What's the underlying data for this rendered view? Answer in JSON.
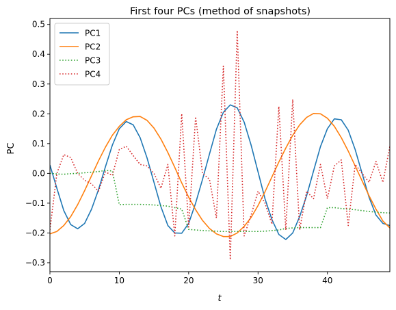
{
  "chart_data": {
    "type": "line",
    "title": "First four PCs (method of snapshots)",
    "xlabel": "t",
    "ylabel": "PC",
    "xlim": [
      0,
      49
    ],
    "ylim": [
      -0.33,
      0.52
    ],
    "xticks": [
      0,
      10,
      20,
      30,
      40
    ],
    "yticks": [
      -0.3,
      -0.2,
      -0.1,
      0.0,
      0.1,
      0.2,
      0.3,
      0.4,
      0.5
    ],
    "ytick_labels": [
      "−0.3",
      "−0.2",
      "−0.1",
      "0.0",
      "0.1",
      "0.2",
      "0.3",
      "0.4",
      "0.5"
    ],
    "grid": false,
    "legend_position": "upper-left",
    "x": [
      0,
      1,
      2,
      3,
      4,
      5,
      6,
      7,
      8,
      9,
      10,
      11,
      12,
      13,
      14,
      15,
      16,
      17,
      18,
      19,
      20,
      21,
      22,
      23,
      24,
      25,
      26,
      27,
      28,
      29,
      30,
      31,
      32,
      33,
      34,
      35,
      36,
      37,
      38,
      39,
      40,
      41,
      42,
      43,
      44,
      45,
      46,
      47,
      48,
      49
    ],
    "series": [
      {
        "name": "PC1",
        "color": "#1f77b4",
        "style": "solid",
        "values": [
          0.028,
          -0.05,
          -0.125,
          -0.172,
          -0.186,
          -0.168,
          -0.12,
          -0.055,
          0.022,
          0.095,
          0.15,
          0.174,
          0.163,
          0.12,
          0.052,
          -0.03,
          -0.112,
          -0.175,
          -0.2,
          -0.201,
          -0.168,
          -0.1,
          -0.02,
          0.065,
          0.148,
          0.205,
          0.23,
          0.22,
          0.172,
          0.095,
          0.005,
          -0.085,
          -0.155,
          -0.205,
          -0.222,
          -0.2,
          -0.145,
          -0.075,
          0.008,
          0.09,
          0.15,
          0.183,
          0.18,
          0.145,
          0.08,
          0.0,
          -0.08,
          -0.14,
          -0.168,
          -0.175
        ]
      },
      {
        "name": "PC2",
        "color": "#ff7f0e",
        "style": "solid",
        "values": [
          -0.203,
          -0.195,
          -0.175,
          -0.145,
          -0.105,
          -0.058,
          -0.008,
          0.042,
          0.088,
          0.128,
          0.158,
          0.18,
          0.19,
          0.191,
          0.178,
          0.152,
          0.115,
          0.07,
          0.02,
          -0.032,
          -0.08,
          -0.122,
          -0.158,
          -0.185,
          -0.203,
          -0.212,
          -0.212,
          -0.2,
          -0.178,
          -0.148,
          -0.108,
          -0.062,
          -0.012,
          0.038,
          0.085,
          0.128,
          0.163,
          0.188,
          0.201,
          0.2,
          0.185,
          0.158,
          0.12,
          0.075,
          0.025,
          -0.025,
          -0.075,
          -0.12,
          -0.16,
          -0.183
        ]
      },
      {
        "name": "PC3",
        "color": "#2ca02c",
        "style": "dotted",
        "values": [
          0.0,
          -0.002,
          -0.003,
          -0.001,
          0.0,
          0.002,
          0.004,
          0.006,
          0.01,
          0.008,
          -0.105,
          -0.104,
          -0.104,
          -0.104,
          -0.105,
          -0.106,
          -0.108,
          -0.11,
          -0.115,
          -0.12,
          -0.188,
          -0.19,
          -0.192,
          -0.193,
          -0.194,
          -0.195,
          -0.195,
          -0.195,
          -0.195,
          -0.195,
          -0.195,
          -0.194,
          -0.192,
          -0.19,
          -0.185,
          -0.183,
          -0.182,
          -0.182,
          -0.182,
          -0.182,
          -0.115,
          -0.115,
          -0.118,
          -0.12,
          -0.122,
          -0.125,
          -0.128,
          -0.13,
          -0.132,
          -0.133
        ]
      },
      {
        "name": "PC4",
        "color": "#d62728",
        "style": "dotted",
        "values": [
          -0.19,
          0.0,
          0.063,
          0.053,
          0.0,
          -0.023,
          -0.035,
          -0.06,
          0.005,
          -0.007,
          0.08,
          0.091,
          0.06,
          0.03,
          0.025,
          0.0,
          -0.05,
          0.03,
          -0.21,
          0.2,
          -0.18,
          0.19,
          0.0,
          -0.02,
          -0.15,
          0.36,
          -0.29,
          0.48,
          -0.21,
          -0.14,
          -0.06,
          -0.1,
          -0.17,
          0.225,
          -0.19,
          0.248,
          -0.19,
          -0.06,
          -0.085,
          0.03,
          -0.085,
          0.025,
          0.045,
          -0.175,
          0.03,
          0.0,
          -0.03,
          0.04,
          -0.03,
          0.09
        ]
      }
    ]
  }
}
